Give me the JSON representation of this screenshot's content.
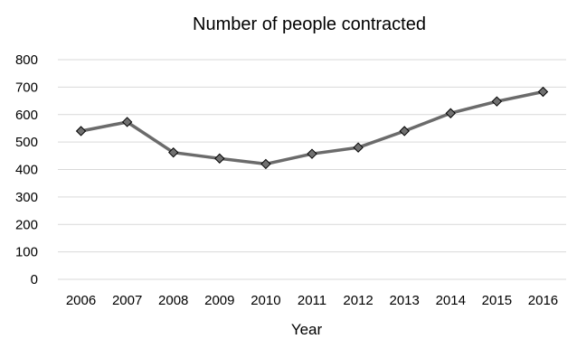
{
  "chart_data": {
    "type": "line",
    "title": "Number of people contracted",
    "xlabel": "Year",
    "ylabel": "",
    "categories": [
      "2006",
      "2007",
      "2008",
      "2009",
      "2010",
      "2011",
      "2012",
      "2013",
      "2014",
      "2015",
      "2016"
    ],
    "series": [
      {
        "values": [
          540,
          573,
          462,
          440,
          420,
          457,
          480,
          540,
          605,
          648,
          683
        ]
      }
    ],
    "ylim": [
      0,
      800
    ],
    "yticks": [
      "0",
      "100",
      "200",
      "300",
      "400",
      "500",
      "600",
      "700",
      "800"
    ],
    "grid": true,
    "legend": "none",
    "colors": {
      "line": "#6b6b6b",
      "marker_fill": "#707070",
      "marker_stroke": "#000000",
      "grid": "#d9d9d9"
    }
  }
}
